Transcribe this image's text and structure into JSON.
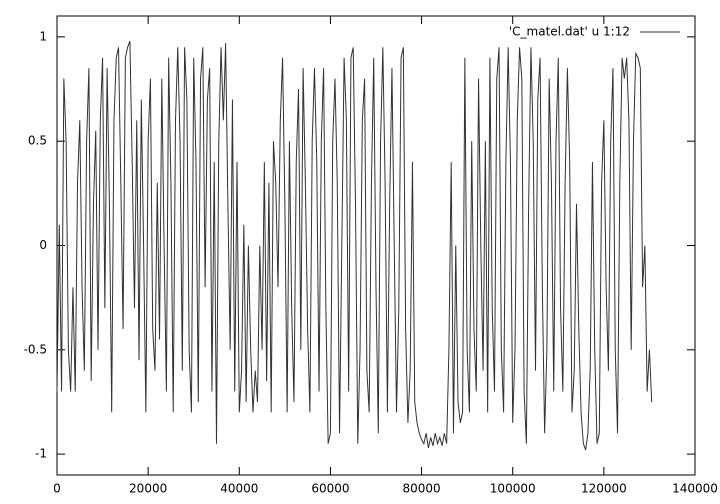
{
  "chart_data": {
    "type": "line",
    "x": [
      0,
      500,
      1000,
      1500,
      2000,
      2500,
      3000,
      3500,
      4000,
      4500,
      5000,
      5500,
      6000,
      6500,
      7000,
      7500,
      8000,
      8500,
      9000,
      9500,
      10000,
      10500,
      11000,
      11500,
      12000,
      12500,
      13000,
      13500,
      14000,
      14500,
      15000,
      15500,
      16000,
      16500,
      17000,
      17500,
      18000,
      18500,
      19000,
      19500,
      20000,
      20500,
      21000,
      21500,
      22000,
      22500,
      23000,
      23500,
      24000,
      24500,
      25000,
      25500,
      26000,
      26500,
      27000,
      27500,
      28000,
      28500,
      29000,
      29500,
      30000,
      30500,
      31000,
      31500,
      32000,
      32500,
      33000,
      33500,
      34000,
      34500,
      35000,
      35500,
      36000,
      36500,
      37000,
      37500,
      38000,
      38500,
      39000,
      39500,
      40000,
      40500,
      41000,
      41500,
      42000,
      42500,
      43000,
      43500,
      44000,
      44500,
      45000,
      45500,
      46000,
      46500,
      47000,
      47500,
      48000,
      48500,
      49000,
      49500,
      50000,
      50500,
      51000,
      51500,
      52000,
      52500,
      53000,
      53500,
      54000,
      54500,
      55000,
      55500,
      56000,
      56500,
      57000,
      57500,
      58000,
      58500,
      59000,
      59500,
      60000,
      60500,
      61000,
      61500,
      62000,
      62500,
      63000,
      63500,
      64000,
      64500,
      65000,
      65500,
      66000,
      66500,
      67000,
      67500,
      68000,
      68500,
      69000,
      69500,
      70000,
      70500,
      71000,
      71500,
      72000,
      72500,
      73000,
      73500,
      74000,
      74500,
      75000,
      75500,
      76000,
      76500,
      77000,
      77500,
      78000,
      78500,
      79000,
      79500,
      80000,
      80500,
      81000,
      81500,
      82000,
      82500,
      83000,
      83500,
      84000,
      84500,
      85000,
      85500,
      86000,
      86500,
      87000,
      87500,
      88000,
      88500,
      89000,
      89500,
      90000,
      90500,
      91000,
      91500,
      92000,
      92500,
      93000,
      93500,
      94000,
      94500,
      95000,
      95500,
      96000,
      96500,
      97000,
      97500,
      98000,
      98500,
      99000,
      99500,
      100000,
      100500,
      101000,
      101500,
      102000,
      102500,
      103000,
      103500,
      104000,
      104500,
      105000,
      105500,
      106000,
      106500,
      107000,
      107500,
      108000,
      108500,
      109000,
      109500,
      110000,
      110500,
      111000,
      111500,
      112000,
      112500,
      113000,
      113500,
      114000,
      114500,
      115000,
      115500,
      116000,
      116500,
      117000,
      117500,
      118000,
      118500,
      119000,
      119500,
      120000,
      120500,
      121000,
      121500,
      122000,
      122500,
      123000,
      123500,
      124000,
      124500,
      125000,
      125500,
      126000,
      126500,
      127000,
      127500,
      128000,
      128500,
      129000,
      129500,
      130000,
      130500
    ],
    "series": [
      {
        "name": "'C_matel.dat' u 1:12",
        "color": "#333333",
        "values": [
          -0.7,
          0.1,
          -0.7,
          0.8,
          0.5,
          -0.5,
          -0.7,
          -0.2,
          -0.7,
          0.3,
          0.6,
          -0.2,
          -0.6,
          0.5,
          0.85,
          -0.65,
          0.2,
          0.55,
          -0.5,
          0.6,
          0.9,
          -0.3,
          0.85,
          0.2,
          -0.8,
          0.6,
          0.9,
          0.95,
          0.3,
          -0.4,
          0.9,
          0.95,
          0.98,
          0.4,
          -0.3,
          0.6,
          -0.55,
          0.7,
          0.0,
          -0.8,
          0.5,
          0.8,
          -0.4,
          -0.6,
          0.3,
          -0.45,
          0.8,
          0.0,
          -0.7,
          0.9,
          0.3,
          -0.8,
          0.6,
          0.95,
          0.5,
          -0.6,
          0.95,
          0.7,
          -0.5,
          -0.8,
          0.9,
          0.4,
          -0.75,
          0.8,
          0.95,
          -0.2,
          0.7,
          0.85,
          -0.7,
          0.4,
          -0.95,
          0.5,
          0.95,
          0.6,
          0.97,
          0.2,
          -0.5,
          0.7,
          -0.7,
          0.4,
          -0.8,
          -0.6,
          0.1,
          -0.75,
          0.0,
          -0.5,
          -0.8,
          -0.6,
          -0.75,
          0.0,
          -0.5,
          0.4,
          -0.65,
          0.3,
          -0.8,
          0.5,
          0.3,
          -0.2,
          0.6,
          0.9,
          0.2,
          -0.8,
          0.5,
          -0.3,
          -0.75,
          0.4,
          0.75,
          -0.5,
          0.85,
          0.3,
          -0.4,
          -0.8,
          0.5,
          0.85,
          0.4,
          -0.7,
          0.5,
          0.85,
          -0.3,
          -0.95,
          -0.9,
          0.5,
          0.8,
          0.3,
          -0.9,
          0.0,
          0.9,
          0.6,
          -0.7,
          0.9,
          0.95,
          0.2,
          -0.95,
          -0.5,
          0.6,
          0.8,
          -0.6,
          -0.8,
          0.3,
          0.9,
          -0.2,
          -0.9,
          0.5,
          0.95,
          0.3,
          -0.8,
          0.2,
          0.85,
          0.0,
          -0.8,
          -0.3,
          0.9,
          0.95,
          -0.4,
          -0.85,
          -0.6,
          0.4,
          -0.75,
          -0.85,
          -0.9,
          -0.93,
          -0.95,
          -0.9,
          -0.97,
          -0.92,
          -0.96,
          -0.9,
          -0.95,
          -0.92,
          -0.96,
          -0.9,
          -0.95,
          -0.5,
          0.4,
          -0.9,
          0.0,
          -0.75,
          -0.85,
          -0.8,
          0.9,
          -0.5,
          -0.8,
          0.5,
          -0.4,
          -0.7,
          0.8,
          0.0,
          -0.6,
          0.5,
          -0.8,
          0.9,
          -0.3,
          -0.7,
          0.8,
          0.95,
          -0.5,
          -0.8,
          0.4,
          0.95,
          0.4,
          -0.85,
          -0.5,
          0.6,
          0.95,
          0.8,
          -0.7,
          -0.95,
          0.2,
          0.95,
          0.5,
          -0.6,
          0.7,
          0.9,
          -0.2,
          -0.9,
          -0.5,
          0.8,
          0.3,
          -0.7,
          0.5,
          0.9,
          -0.3,
          -0.7,
          0.3,
          0.85,
          0.4,
          -0.8,
          -0.6,
          0.2,
          -0.4,
          -0.8,
          -0.95,
          -0.98,
          -0.9,
          -0.6,
          0.4,
          -0.5,
          -0.95,
          -0.9,
          0.3,
          0.6,
          -0.2,
          -0.6,
          0.5,
          0.85,
          -0.5,
          -0.9,
          0.3,
          0.9,
          0.8,
          0.9,
          0.6,
          -0.5,
          0.5,
          0.92,
          0.9,
          0.85,
          -0.2,
          0.0,
          -0.7,
          -0.5,
          -0.75
        ]
      }
    ],
    "xlim": [
      0,
      140000
    ],
    "xticks": [
      0,
      20000,
      40000,
      60000,
      80000,
      100000,
      120000,
      140000
    ],
    "ylim": [
      -1.1,
      1.1
    ],
    "yticks": [
      -1,
      -0.5,
      0,
      0.5,
      1
    ],
    "legend": "top-right"
  }
}
